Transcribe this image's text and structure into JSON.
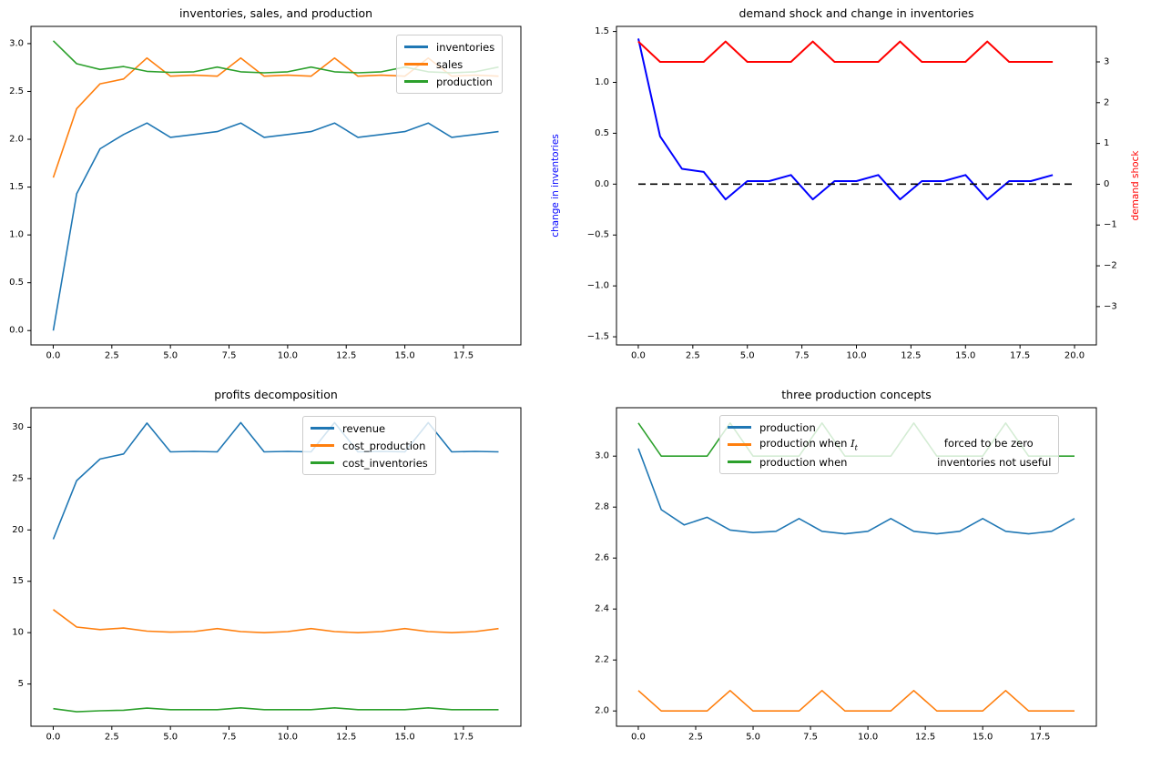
{
  "figure": {
    "background": "#ffffff"
  },
  "colors": {
    "mpl_blue": "#1f77b4",
    "mpl_orange": "#ff7f0e",
    "mpl_green": "#2ca02c",
    "pure_blue": "#0000ff",
    "pure_red": "#ff0000",
    "black": "#000000"
  },
  "chart_data": [
    {
      "id": "inventories-sales-production",
      "type": "line",
      "title": "inventories, sales, and production",
      "xlabel": "",
      "ylabel": "",
      "grid": false,
      "x": [
        0,
        1,
        2,
        3,
        4,
        5,
        6,
        7,
        8,
        9,
        10,
        11,
        12,
        13,
        14,
        15,
        16,
        17,
        18,
        19
      ],
      "xlim": [
        -0.95,
        19.95
      ],
      "ylim": [
        -0.15,
        3.18
      ],
      "xticks": {
        "values": [
          0,
          2.5,
          5,
          7.5,
          10,
          12.5,
          15,
          17.5
        ],
        "labels": [
          "0.0",
          "2.5",
          "5.0",
          "7.5",
          "10.0",
          "12.5",
          "15.0",
          "17.5"
        ]
      },
      "yticks": {
        "values": [
          0,
          0.5,
          1,
          1.5,
          2,
          2.5,
          3
        ],
        "labels": [
          "0.0",
          "0.5",
          "1.0",
          "1.5",
          "2.0",
          "2.5",
          "3.0"
        ]
      },
      "legend": {
        "loc": "upper right",
        "entries": [
          {
            "label": "inventories",
            "color": "#1f77b4"
          },
          {
            "label": "sales",
            "color": "#ff7f0e"
          },
          {
            "label": "production",
            "color": "#2ca02c"
          }
        ]
      },
      "series": [
        {
          "name": "inventories",
          "color": "#1f77b4",
          "linewidth": 1.6,
          "values": [
            0.0,
            1.43,
            1.9,
            2.05,
            2.17,
            2.02,
            2.05,
            2.08,
            2.17,
            2.02,
            2.05,
            2.08,
            2.17,
            2.02,
            2.05,
            2.08,
            2.17,
            2.02,
            2.05,
            2.08
          ]
        },
        {
          "name": "sales",
          "color": "#ff7f0e",
          "linewidth": 1.6,
          "values": [
            1.6,
            2.32,
            2.58,
            2.63,
            2.85,
            2.66,
            2.67,
            2.66,
            2.85,
            2.66,
            2.67,
            2.66,
            2.85,
            2.66,
            2.67,
            2.66,
            2.85,
            2.66,
            2.67,
            2.66
          ]
        },
        {
          "name": "production",
          "color": "#2ca02c",
          "linewidth": 1.6,
          "values": [
            3.03,
            2.79,
            2.73,
            2.76,
            2.71,
            2.7,
            2.705,
            2.755,
            2.705,
            2.695,
            2.705,
            2.755,
            2.705,
            2.695,
            2.705,
            2.755,
            2.705,
            2.695,
            2.705,
            2.755
          ]
        }
      ]
    },
    {
      "id": "demand-shock-change-in-inventories",
      "type": "line",
      "title": "demand shock and change in inventories",
      "ylabel_left": {
        "text": "change in inventories",
        "color": "#0000ff"
      },
      "ylabel_right": {
        "text": "demand shock",
        "color": "#ff0000"
      },
      "grid": false,
      "x": [
        0,
        1,
        2,
        3,
        4,
        5,
        6,
        7,
        8,
        9,
        10,
        11,
        12,
        13,
        14,
        15,
        16,
        17,
        18,
        19
      ],
      "xlim": [
        -1,
        21
      ],
      "ylim": [
        -1.58,
        1.55
      ],
      "ylim_right": [
        -3.94,
        3.87
      ],
      "xticks": {
        "values": [
          0,
          2.5,
          5,
          7.5,
          10,
          12.5,
          15,
          17.5,
          20
        ],
        "labels": [
          "0.0",
          "2.5",
          "5.0",
          "7.5",
          "10.0",
          "12.5",
          "15.0",
          "17.5",
          "20.0"
        ]
      },
      "yticks": {
        "values": [
          -1.5,
          -1,
          -0.5,
          0,
          0.5,
          1,
          1.5
        ],
        "labels": [
          "−1.5",
          "−1.0",
          "−0.5",
          "0.0",
          "0.5",
          "1.0",
          "1.5"
        ]
      },
      "yticks_right": {
        "values": [
          -3,
          -2,
          -1,
          0,
          1,
          2,
          3
        ],
        "labels": [
          "−3",
          "−2",
          "−1",
          "0",
          "1",
          "2",
          "3"
        ]
      },
      "series": [
        {
          "name": "change-in-inventories",
          "color": "#0000ff",
          "linewidth": 2,
          "values": [
            1.43,
            0.47,
            0.15,
            0.12,
            -0.15,
            0.03,
            0.03,
            0.09,
            -0.15,
            0.03,
            0.03,
            0.09,
            -0.15,
            0.03,
            0.03,
            0.09,
            -0.15,
            0.03,
            0.03,
            0.09
          ]
        },
        {
          "name": "demand-shock",
          "color": "#ff0000",
          "linewidth": 2,
          "axis": "right",
          "values": [
            3.5,
            3,
            3,
            3,
            3.5,
            3,
            3,
            3,
            3.5,
            3,
            3,
            3,
            3.5,
            3,
            3,
            3,
            3.5,
            3,
            3,
            3
          ]
        },
        {
          "name": "zero-benchmark",
          "color": "#000000",
          "linewidth": 1.6,
          "dash": "8 5",
          "x": [
            0,
            20
          ],
          "values": [
            0,
            0
          ]
        }
      ]
    },
    {
      "id": "profits-decomposition",
      "type": "line",
      "title": "profits decomposition",
      "grid": false,
      "x": [
        0,
        1,
        2,
        3,
        4,
        5,
        6,
        7,
        8,
        9,
        10,
        11,
        12,
        13,
        14,
        15,
        16,
        17,
        18,
        19
      ],
      "xlim": [
        -0.95,
        19.95
      ],
      "ylim": [
        0.89,
        31.9
      ],
      "xticks": {
        "values": [
          0,
          2.5,
          5,
          7.5,
          10,
          12.5,
          15,
          17.5
        ],
        "labels": [
          "0.0",
          "2.5",
          "5.0",
          "7.5",
          "10.0",
          "12.5",
          "15.0",
          "17.5"
        ]
      },
      "yticks": {
        "values": [
          5,
          10,
          15,
          20,
          25,
          30
        ],
        "labels": [
          "5",
          "10",
          "15",
          "20",
          "25",
          "30"
        ]
      },
      "legend": {
        "loc": "upper right",
        "entries": [
          {
            "label": "revenue",
            "color": "#1f77b4"
          },
          {
            "label": "cost_production",
            "color": "#ff7f0e"
          },
          {
            "label": "cost_inventories",
            "color": "#2ca02c"
          }
        ]
      },
      "series": [
        {
          "name": "revenue",
          "color": "#1f77b4",
          "linewidth": 1.6,
          "values": [
            19.1,
            24.8,
            26.9,
            27.4,
            30.4,
            27.6,
            27.65,
            27.6,
            30.45,
            27.6,
            27.65,
            27.6,
            30.45,
            27.6,
            27.65,
            27.6,
            30.45,
            27.6,
            27.65,
            27.6
          ]
        },
        {
          "name": "cost_production",
          "color": "#ff7f0e",
          "linewidth": 1.6,
          "values": [
            12.25,
            10.55,
            10.3,
            10.45,
            10.15,
            10.05,
            10.1,
            10.4,
            10.1,
            10.0,
            10.1,
            10.4,
            10.1,
            10.0,
            10.1,
            10.4,
            10.1,
            10.0,
            10.1,
            10.4
          ]
        },
        {
          "name": "cost_inventories",
          "color": "#2ca02c",
          "linewidth": 1.6,
          "values": [
            2.6,
            2.3,
            2.4,
            2.45,
            2.65,
            2.5,
            2.5,
            2.5,
            2.68,
            2.5,
            2.5,
            2.5,
            2.68,
            2.5,
            2.5,
            2.5,
            2.68,
            2.5,
            2.5,
            2.5
          ]
        }
      ]
    },
    {
      "id": "three-production-concepts",
      "type": "line",
      "title": "three production concepts",
      "grid": false,
      "x": [
        0,
        1,
        2,
        3,
        4,
        5,
        6,
        7,
        8,
        9,
        10,
        11,
        12,
        13,
        14,
        15,
        16,
        17,
        18,
        19
      ],
      "xlim": [
        -0.95,
        19.95
      ],
      "ylim": [
        1.94,
        3.19
      ],
      "xticks": {
        "values": [
          0,
          2.5,
          5,
          7.5,
          10,
          12.5,
          15,
          17.5
        ],
        "labels": [
          "0.0",
          "2.5",
          "5.0",
          "7.5",
          "10.0",
          "12.5",
          "15.0",
          "17.5"
        ]
      },
      "yticks": {
        "values": [
          2,
          2.2,
          2.4,
          2.6,
          2.8,
          3
        ],
        "labels": [
          "2.0",
          "2.2",
          "2.4",
          "2.6",
          "2.8",
          "3.0"
        ]
      },
      "legend": {
        "loc": "upper right",
        "entries": [
          {
            "label": "production",
            "color": "#1f77b4"
          },
          {
            "label": "production when $I_t$                          forced to be zero",
            "color": "#ff7f0e"
          },
          {
            "label": "production when                           inventories not useful",
            "color": "#2ca02c"
          }
        ]
      },
      "series": [
        {
          "name": "production",
          "color": "#1f77b4",
          "linewidth": 1.6,
          "values": [
            3.03,
            2.79,
            2.73,
            2.76,
            2.71,
            2.7,
            2.705,
            2.755,
            2.705,
            2.695,
            2.705,
            2.755,
            2.705,
            2.695,
            2.705,
            2.755,
            2.705,
            2.695,
            2.705,
            2.755
          ]
        },
        {
          "name": "production-when-It-forced-to-zero",
          "color": "#ff7f0e",
          "linewidth": 1.6,
          "values": [
            2.08,
            2.0,
            2.0,
            2.0,
            2.08,
            2.0,
            2.0,
            2.0,
            2.08,
            2.0,
            2.0,
            2.0,
            2.08,
            2.0,
            2.0,
            2.0,
            2.08,
            2.0,
            2.0,
            2.0
          ]
        },
        {
          "name": "production-when-inventories-not-useful",
          "color": "#2ca02c",
          "linewidth": 1.6,
          "values": [
            3.13,
            3.0,
            3.0,
            3.0,
            3.13,
            3.0,
            3.0,
            3.0,
            3.13,
            3.0,
            3.0,
            3.0,
            3.13,
            3.0,
            3.0,
            3.0,
            3.13,
            3.0,
            3.0,
            3.0
          ]
        }
      ]
    }
  ]
}
